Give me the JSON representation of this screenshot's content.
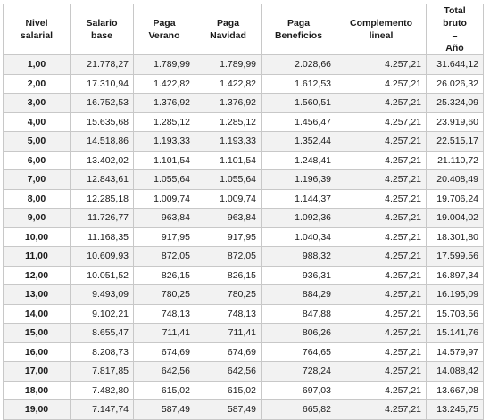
{
  "table": {
    "headers": [
      "Nivel salarial",
      "Salario base",
      "Paga Verano",
      "Paga Navidad",
      "Paga Beneficios",
      "Complemento lineal",
      "Total bruto – Año"
    ],
    "total_header": {
      "line1": "Total bruto",
      "line2": "–",
      "line3": "Año"
    },
    "rows": [
      [
        "1,00",
        "21.778,27",
        "1.789,99",
        "1.789,99",
        "2.028,66",
        "4.257,21",
        "31.644,12"
      ],
      [
        "2,00",
        "17.310,94",
        "1.422,82",
        "1.422,82",
        "1.612,53",
        "4.257,21",
        "26.026,32"
      ],
      [
        "3,00",
        "16.752,53",
        "1.376,92",
        "1.376,92",
        "1.560,51",
        "4.257,21",
        "25.324,09"
      ],
      [
        "4,00",
        "15.635,68",
        "1.285,12",
        "1.285,12",
        "1.456,47",
        "4.257,21",
        "23.919,60"
      ],
      [
        "5,00",
        "14.518,86",
        "1.193,33",
        "1.193,33",
        "1.352,44",
        "4.257,21",
        "22.515,17"
      ],
      [
        "6,00",
        "13.402,02",
        "1.101,54",
        "1.101,54",
        "1.248,41",
        "4.257,21",
        "21.110,72"
      ],
      [
        "7,00",
        "12.843,61",
        "1.055,64",
        "1.055,64",
        "1.196,39",
        "4.257,21",
        "20.408,49"
      ],
      [
        "8,00",
        "12.285,18",
        "1.009,74",
        "1.009,74",
        "1.144,37",
        "4.257,21",
        "19.706,24"
      ],
      [
        "9,00",
        "11.726,77",
        "963,84",
        "963,84",
        "1.092,36",
        "4.257,21",
        "19.004,02"
      ],
      [
        "10,00",
        "11.168,35",
        "917,95",
        "917,95",
        "1.040,34",
        "4.257,21",
        "18.301,80"
      ],
      [
        "11,00",
        "10.609,93",
        "872,05",
        "872,05",
        "988,32",
        "4.257,21",
        "17.599,56"
      ],
      [
        "12,00",
        "10.051,52",
        "826,15",
        "826,15",
        "936,31",
        "4.257,21",
        "16.897,34"
      ],
      [
        "13,00",
        "9.493,09",
        "780,25",
        "780,25",
        "884,29",
        "4.257,21",
        "16.195,09"
      ],
      [
        "14,00",
        "9.102,21",
        "748,13",
        "748,13",
        "847,88",
        "4.257,21",
        "15.703,56"
      ],
      [
        "15,00",
        "8.655,47",
        "711,41",
        "711,41",
        "806,26",
        "4.257,21",
        "15.141,76"
      ],
      [
        "16,00",
        "8.208,73",
        "674,69",
        "674,69",
        "764,65",
        "4.257,21",
        "14.579,97"
      ],
      [
        "17,00",
        "7.817,85",
        "642,56",
        "642,56",
        "728,24",
        "4.257,21",
        "14.088,42"
      ],
      [
        "18,00",
        "7.482,80",
        "615,02",
        "615,02",
        "697,03",
        "4.257,21",
        "13.667,08"
      ],
      [
        "19,00",
        "7.147,74",
        "587,49",
        "587,49",
        "665,82",
        "4.257,21",
        "13.245,75"
      ]
    ]
  }
}
